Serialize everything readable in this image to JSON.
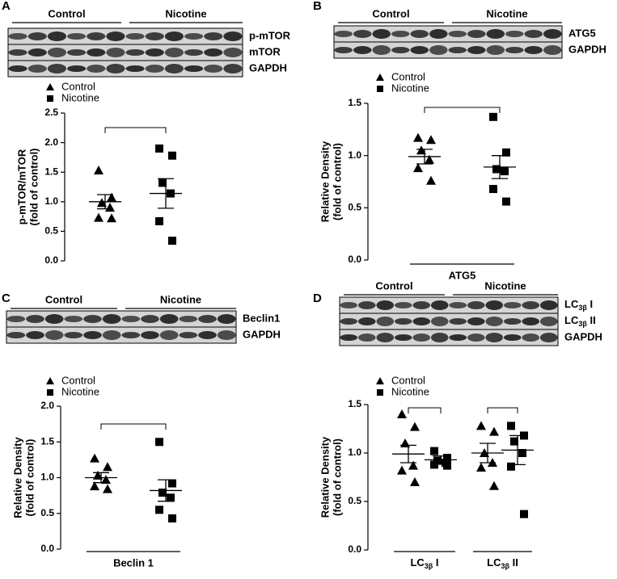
{
  "chart_data": [
    {
      "type": "dotplot",
      "panel": "A",
      "blot_groups": [
        "Control",
        "Nicotine"
      ],
      "blot_rows": [
        "p-mTOR",
        "mTOR",
        "GAPDH"
      ],
      "ylabel": [
        "p-mTOR/mTOR",
        "(fold of control)"
      ],
      "categories": [
        null
      ],
      "ylim": [
        0,
        2.5
      ],
      "yticks": [
        {
          "value": 0,
          "label": "0.0"
        },
        0.5,
        {
          "value": 1,
          "label": "1.0"
        },
        1.5,
        {
          "value": 2,
          "label": "2.0"
        },
        2.5
      ],
      "series": [
        {
          "name": "Control",
          "marker": "triangle",
          "color": "#000000",
          "values": [
            [
              1.53,
              1.07,
              0.98,
              0.9,
              0.73,
              0.72
            ]
          ],
          "mean": [
            1.0
          ],
          "sem": [
            0.12
          ]
        },
        {
          "name": "Nicotine",
          "marker": "square",
          "color": "#000000",
          "values": [
            [
              1.9,
              1.78,
              1.32,
              1.14,
              0.67,
              0.34
            ]
          ],
          "mean": [
            1.14
          ],
          "sem": [
            0.25
          ]
        }
      ]
    },
    {
      "type": "dotplot",
      "panel": "B",
      "blot_groups": [
        "Control",
        "Nicotine"
      ],
      "blot_rows": [
        "ATG5",
        "GAPDH"
      ],
      "ylabel": [
        "Relative Density",
        "(fold of control)"
      ],
      "categories": [
        "ATG5"
      ],
      "ylim": [
        0,
        1.5
      ],
      "yticks": [
        {
          "value": 0,
          "label": "0.0"
        },
        0.5,
        {
          "value": 1,
          "label": "1.0"
        },
        1.5
      ],
      "series": [
        {
          "name": "Control",
          "marker": "triangle",
          "color": "#000000",
          "values": [
            [
              1.17,
              1.15,
              1.05,
              0.96,
              0.88,
              0.76
            ]
          ],
          "mean": [
            0.99
          ],
          "sem": [
            0.07
          ]
        },
        {
          "name": "Nicotine",
          "marker": "square",
          "color": "#000000",
          "values": [
            [
              1.37,
              1.03,
              0.87,
              0.85,
              0.68,
              0.56
            ]
          ],
          "mean": [
            0.89
          ],
          "sem": [
            0.11
          ]
        }
      ]
    },
    {
      "type": "dotplot",
      "panel": "C",
      "blot_groups": [
        "Control",
        "Nicotine"
      ],
      "blot_rows": [
        "Beclin1",
        "GAPDH"
      ],
      "ylabel": [
        "Relative Density",
        "(fold of control)"
      ],
      "categories": [
        "Beclin 1"
      ],
      "ylim": [
        0,
        2
      ],
      "yticks": [
        {
          "value": 0,
          "label": "0.0"
        },
        0.5,
        {
          "value": 1,
          "label": "1.0"
        },
        1.5,
        {
          "value": 2,
          "label": "2.0"
        }
      ],
      "series": [
        {
          "name": "Control",
          "marker": "triangle",
          "color": "#000000",
          "values": [
            [
              1.27,
              1.15,
              1.03,
              0.97,
              0.88,
              0.84
            ]
          ],
          "mean": [
            1.0
          ],
          "sem": [
            0.07
          ]
        },
        {
          "name": "Nicotine",
          "marker": "square",
          "color": "#000000",
          "values": [
            [
              1.5,
              0.92,
              0.79,
              0.72,
              0.55,
              0.43
            ]
          ],
          "mean": [
            0.82
          ],
          "sem": [
            0.15
          ]
        }
      ]
    },
    {
      "type": "dotplot",
      "panel": "D",
      "blot_groups": [
        "Control",
        "Nicotine"
      ],
      "blot_rows": [
        {
          "base": "LC",
          "sub": "3β",
          "suffix": " I"
        },
        {
          "base": "LC",
          "sub": "3β",
          "suffix": " II"
        },
        "GAPDH"
      ],
      "ylabel": [
        "Relative Density",
        "(fold of control)"
      ],
      "categories": [
        {
          "base": "LC",
          "sub": "3β",
          "suffix": " I"
        },
        {
          "base": "LC",
          "sub": "3β",
          "suffix": " II"
        }
      ],
      "ylim": [
        0,
        1.5
      ],
      "yticks": [
        {
          "value": 0,
          "label": "0.0"
        },
        0.5,
        {
          "value": 1,
          "label": "1.0"
        },
        1.5
      ],
      "series": [
        {
          "name": "Control",
          "marker": "triangle",
          "color": "#000000",
          "values": [
            [
              1.4,
              1.27,
              1.1,
              0.87,
              0.82,
              0.7
            ],
            [
              1.28,
              1.22,
              1.0,
              0.9,
              0.85,
              0.66
            ]
          ],
          "mean": [
            0.99,
            1.0
          ],
          "sem": [
            0.09,
            0.1
          ]
        },
        {
          "name": "Nicotine",
          "marker": "square",
          "color": "#000000",
          "values": [
            [
              1.02,
              0.95,
              0.92,
              0.9,
              0.88,
              0.87
            ],
            [
              1.28,
              1.18,
              1.12,
              1.0,
              0.86,
              0.37
            ]
          ],
          "mean": [
            0.93,
            1.03
          ],
          "sem": [
            0.04,
            0.15
          ]
        }
      ]
    }
  ]
}
